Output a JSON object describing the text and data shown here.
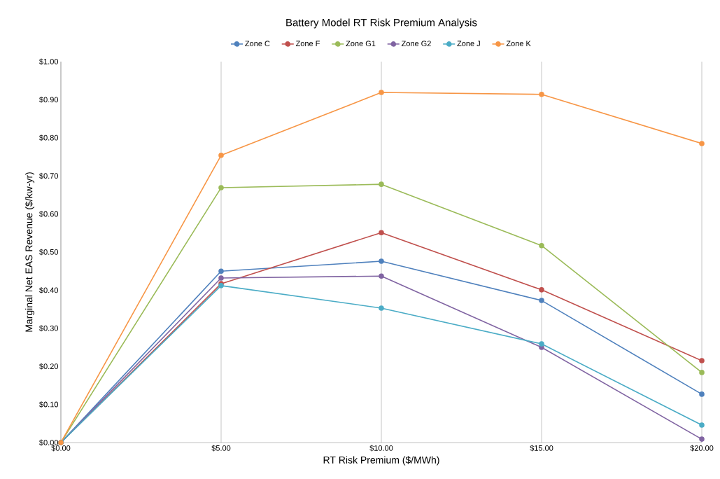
{
  "chart_data": {
    "type": "line",
    "title": "Battery Model RT Risk Premium Analysis",
    "xlabel": "RT Risk Premium ($/MWh)",
    "ylabel": "Marginal Net EAS Revenue ($/kw-yr)",
    "x": [
      0,
      5,
      10,
      15,
      20
    ],
    "series": [
      {
        "name": "Zone C",
        "color": "#4f81bd",
        "values": [
          0,
          0.45,
          0.476,
          0.373,
          0.127
        ]
      },
      {
        "name": "Zone F",
        "color": "#c0504d",
        "values": [
          0,
          0.417,
          0.551,
          0.401,
          0.215
        ]
      },
      {
        "name": "Zone G1",
        "color": "#9bbb59",
        "values": [
          0,
          0.669,
          0.678,
          0.517,
          0.184
        ]
      },
      {
        "name": "Zone G2",
        "color": "#8064a2",
        "values": [
          0,
          0.432,
          0.437,
          0.25,
          0.009
        ]
      },
      {
        "name": "Zone J",
        "color": "#4bacc6",
        "values": [
          0,
          0.412,
          0.353,
          0.259,
          0.046
        ]
      },
      {
        "name": "Zone K",
        "color": "#f79646",
        "values": [
          0,
          0.754,
          0.919,
          0.914,
          0.785
        ]
      }
    ],
    "xlim": [
      0,
      20
    ],
    "xticks": [
      {
        "value": 0,
        "label": "$0.00"
      },
      {
        "value": 5,
        "label": "$5.00"
      },
      {
        "value": 10,
        "label": "$10.00"
      },
      {
        "value": 15,
        "label": "$15.00"
      },
      {
        "value": 20,
        "label": "$20.00"
      }
    ],
    "ylim": [
      0,
      1
    ],
    "yticks": [
      {
        "value": 0,
        "label": "$0.00"
      },
      {
        "value": 0.1,
        "label": "$0.10"
      },
      {
        "value": 0.2,
        "label": "$0.20"
      },
      {
        "value": 0.3,
        "label": "$0.30"
      },
      {
        "value": 0.4,
        "label": "$0.40"
      },
      {
        "value": 0.5,
        "label": "$0.50"
      },
      {
        "value": 0.6,
        "label": "$0.60"
      },
      {
        "value": 0.7,
        "label": "$0.70"
      },
      {
        "value": 0.8,
        "label": "$0.80"
      },
      {
        "value": 0.9,
        "label": "$0.90"
      },
      {
        "value": 1,
        "label": "$1.00"
      }
    ],
    "grid": "x",
    "legend": "top",
    "marker": "circle",
    "line_style": "solid"
  }
}
